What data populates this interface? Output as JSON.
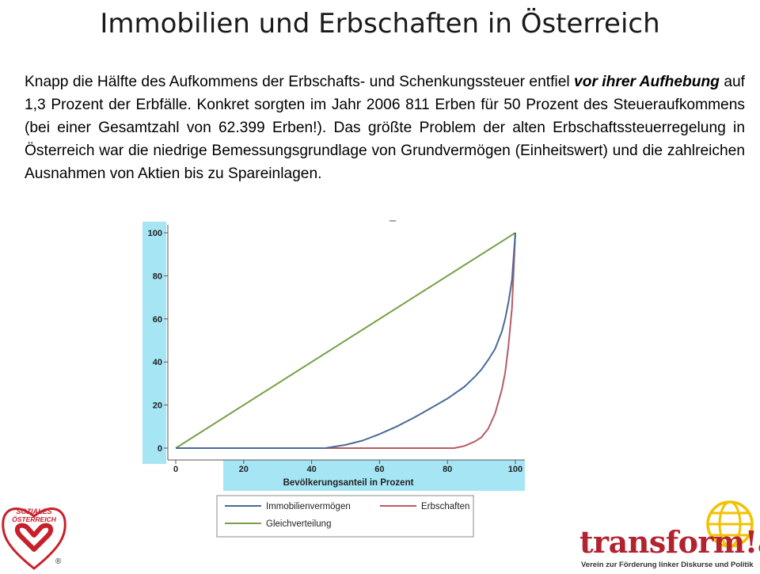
{
  "title": "Immobilien und Erbschaften in Österreich",
  "paragraph": {
    "p1": "Knapp die Hälfte des Aufkommens der Erbschafts- und Schenkungssteuer entfiel ",
    "emph": "vor ihrer Aufhebung",
    "p2": " auf 1,3 Prozent der Erbfälle. Konkret sorgten im Jahr 2006 811 Erben für 50 Prozent des Steueraufkommens (bei einer Gesamtzahl von 62.399 Erben!). Das größte Problem der alten Erbschaftssteuerregelung in Österreich war die niedrige Bemessungsgrundlage von Grundvermögen (Einheitswert) und die zahlreichen Ausnahmen von Aktien bis zu Spareinlagen."
  },
  "chart_data": {
    "type": "line",
    "xlabel": "Bevölkerungsanteil in Prozent",
    "ylabel": "",
    "xlim": [
      0,
      100
    ],
    "ylim": [
      0,
      100
    ],
    "x_ticks": [
      0,
      20,
      40,
      60,
      80,
      100
    ],
    "y_ticks": [
      0,
      20,
      40,
      60,
      80,
      100
    ],
    "grid": false,
    "legend_position": "bottom",
    "series": [
      {
        "name": "Immobilienvermögen",
        "color": "#4a6a96",
        "x": [
          0,
          44,
          50,
          55,
          60,
          65,
          70,
          75,
          80,
          85,
          88,
          90,
          92,
          94,
          95,
          96,
          97,
          98,
          99,
          100
        ],
        "y": [
          0,
          0,
          1.5,
          3.5,
          6.5,
          10,
          14,
          18.5,
          23,
          28.5,
          33,
          36.5,
          41,
          46,
          50,
          54,
          60,
          68,
          78,
          100
        ]
      },
      {
        "name": "Erbschaften",
        "color": "#b85a66",
        "x": [
          0,
          82,
          85,
          88,
          90,
          92,
          94,
          96,
          97,
          98,
          99,
          100
        ],
        "y": [
          0,
          0,
          1,
          3,
          5,
          9,
          16,
          27,
          35,
          48,
          65,
          100
        ]
      },
      {
        "name": "Gleichverteilung",
        "color": "#77a048",
        "x": [
          0,
          100
        ],
        "y": [
          0,
          100
        ]
      }
    ]
  },
  "logos": {
    "left_line1": "SOZIALES",
    "left_line2": "ÖSTERREICH",
    "left_reg": "®",
    "right_word": "transform!at",
    "right_tagline": "Verein zur Förderung linker Diskurse und Politik"
  }
}
